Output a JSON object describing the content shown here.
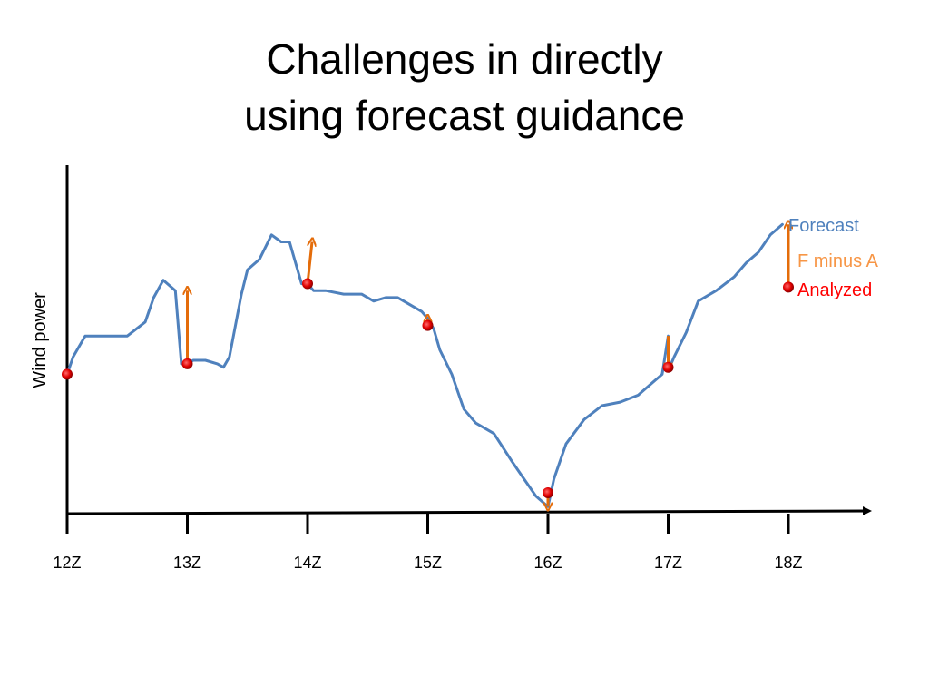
{
  "slide": {
    "title_line1": "Challenges in directly",
    "title_line2": "using forecast guidance"
  },
  "chart_data": {
    "type": "line",
    "title": "Challenges in directly using forecast guidance",
    "xlabel": "",
    "ylabel": "Wind power",
    "x_ticks": [
      "12Z",
      "13Z",
      "14Z",
      "15Z",
      "16Z",
      "17Z",
      "18Z"
    ],
    "xlim": [
      0,
      6.5
    ],
    "ylim": [
      0,
      100
    ],
    "grid": false,
    "y_ticks_shown": false,
    "legend": {
      "placement": "right",
      "entries": [
        {
          "label": "Forecast",
          "color": "#4f81bd"
        },
        {
          "label": "F minus A",
          "color": "#f79646"
        },
        {
          "label": "Analyzed",
          "color": "#ff0000"
        }
      ]
    },
    "series": [
      {
        "name": "Forecast",
        "type": "line",
        "color": "#4f81bd",
        "x": [
          0.0,
          0.05,
          0.15,
          0.28,
          0.35,
          0.5,
          0.65,
          0.72,
          0.8,
          0.9,
          0.95,
          0.98,
          0.99,
          1.05,
          1.15,
          1.25,
          1.3,
          1.35,
          1.45,
          1.5,
          1.6,
          1.7,
          1.78,
          1.85,
          1.95,
          2.0,
          2.05,
          2.15,
          2.3,
          2.45,
          2.55,
          2.65,
          2.75,
          2.85,
          2.95,
          3.0,
          3.05,
          3.1,
          3.2,
          3.3,
          3.4,
          3.55,
          3.7,
          3.8,
          3.9,
          4.0,
          4.05,
          4.15,
          4.3,
          4.45,
          4.6,
          4.75,
          4.85,
          4.95,
          5.0,
          5.0,
          5.05,
          5.15,
          5.25,
          5.4,
          5.55,
          5.65,
          5.75,
          5.85,
          5.95
        ],
        "y": [
          40,
          45,
          51,
          51,
          51,
          51,
          55,
          62,
          67,
          64,
          43,
          43,
          43,
          44,
          44,
          43,
          42,
          45,
          63,
          70,
          73,
          80,
          78,
          78,
          66,
          66,
          64,
          64,
          63,
          63,
          61,
          62,
          62,
          60,
          58,
          56,
          53,
          47,
          40,
          30,
          26,
          23,
          15,
          10,
          5,
          2,
          10,
          20,
          27,
          31,
          32,
          34,
          37,
          40,
          51,
          41,
          45,
          52,
          61,
          64,
          68,
          72,
          75,
          80,
          83
        ]
      },
      {
        "name": "Analyzed",
        "type": "scatter",
        "color": "#ff0000",
        "x": [
          0,
          1,
          2,
          3,
          4,
          5,
          6
        ],
        "y": [
          40,
          43,
          66,
          54,
          6,
          42,
          65
        ]
      },
      {
        "name": "F minus A",
        "type": "arrows",
        "color": "#f79646",
        "x": [
          1,
          2,
          3,
          4,
          5,
          6
        ],
        "from": [
          43,
          66,
          54,
          6,
          51,
          65
        ],
        "to": [
          64,
          78,
          56,
          2,
          42,
          83
        ]
      }
    ]
  }
}
